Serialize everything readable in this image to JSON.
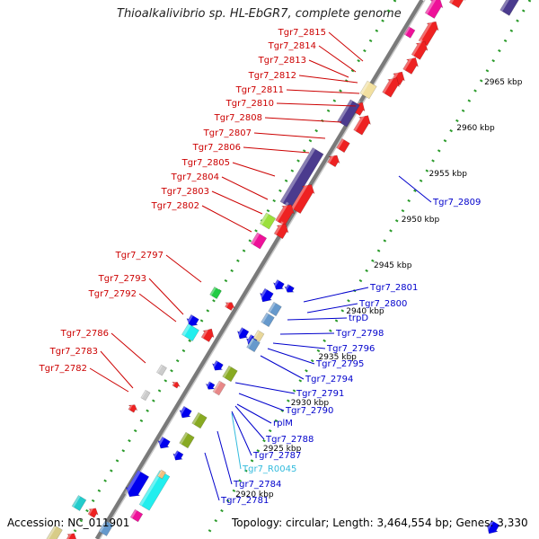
{
  "title": "Thioalkalivibrio sp. HL-EbGR7, complete genome",
  "footer": {
    "accession": "Accession: NC_011901",
    "topology": "Topology: circular; Length: 3,464,554 bp; Genes: 3,330"
  },
  "colors": {
    "backbone": "#8a8a8a",
    "dotted_ring": "#2a9a2a",
    "left_label": "#cc0000",
    "right_label": "#0000cc",
    "rna_label": "#33bbdd"
  },
  "ticks": [
    {
      "kbp": 2920,
      "label": "2920 kbp"
    },
    {
      "kbp": 2925,
      "label": "2925 kbp"
    },
    {
      "kbp": 2930,
      "label": "2930 kbp"
    },
    {
      "kbp": 2935,
      "label": "2935 kbp"
    },
    {
      "kbp": 2940,
      "label": "2940 kbp"
    },
    {
      "kbp": 2945,
      "label": "2945 kbp"
    },
    {
      "kbp": 2950,
      "label": "2950 kbp"
    },
    {
      "kbp": 2955,
      "label": "2955 kbp"
    },
    {
      "kbp": 2960,
      "label": "2960 kbp"
    },
    {
      "kbp": 2965,
      "label": "2965 kbp"
    }
  ],
  "left_labels": [
    "Tgr7_2815",
    "Tgr7_2814",
    "Tgr7_2813",
    "Tgr7_2812",
    "Tgr7_2811",
    "Tgr7_2810",
    "Tgr7_2808",
    "Tgr7_2807",
    "Tgr7_2806",
    "Tgr7_2805",
    "Tgr7_2804",
    "Tgr7_2803",
    "Tgr7_2802",
    "Tgr7_2797",
    "Tgr7_2793",
    "Tgr7_2792",
    "Tgr7_2786",
    "Tgr7_2783",
    "Tgr7_2782"
  ],
  "right_labels": [
    "Tgr7_2809",
    "Tgr7_2801",
    "Tgr7_2800",
    "trpD",
    "Tgr7_2798",
    "Tgr7_2796",
    "Tgr7_2795",
    "Tgr7_2794",
    "Tgr7_2791",
    "Tgr7_2790",
    "rplM",
    "Tgr7_2788",
    "Tgr7_2787",
    "Tgr7_R0045",
    "Tgr7_2784",
    "Tgr7_2781"
  ]
}
